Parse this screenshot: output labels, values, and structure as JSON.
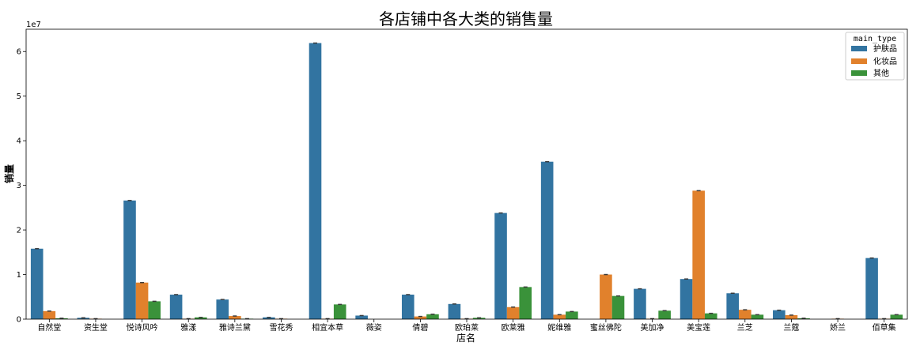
{
  "chart_data": {
    "type": "bar",
    "title": "各店铺中各大类的销售量",
    "xlabel": "店名",
    "ylabel": "销量",
    "y_offset_label": "1e7",
    "ylim": [
      0,
      6.5
    ],
    "y_ticks": [
      0,
      1,
      2,
      3,
      4,
      5,
      6
    ],
    "legend_title": "main_type",
    "legend_position": "top-right",
    "grid": false,
    "categories": [
      "自然堂",
      "资生堂",
      "悦诗风吟",
      "雅漾",
      "雅诗兰黛",
      "雪花秀",
      "相宜本草",
      "薇姿",
      "倩碧",
      "欧珀莱",
      "欧莱雅",
      "妮维雅",
      "蜜丝佛陀",
      "美加净",
      "美宝莲",
      "兰芝",
      "兰蔻",
      "娇兰",
      "佰草集"
    ],
    "series": [
      {
        "name": "护肤品",
        "color": "#3274a1",
        "values": [
          1.58,
          0.03,
          2.66,
          0.55,
          0.44,
          0.04,
          6.19,
          0.08,
          0.55,
          0.34,
          2.38,
          3.53,
          0.0,
          0.68,
          0.9,
          0.58,
          0.2,
          0.0,
          1.37
        ]
      },
      {
        "name": "化妆品",
        "color": "#e1812c",
        "values": [
          0.18,
          0.01,
          0.82,
          0.01,
          0.07,
          0.01,
          0.01,
          0.0,
          0.06,
          0.01,
          0.27,
          0.1,
          1.0,
          0.01,
          2.88,
          0.21,
          0.09,
          0.01,
          0.01
        ]
      },
      {
        "name": "其他",
        "color": "#3a923a",
        "values": [
          0.02,
          0.0,
          0.4,
          0.04,
          0.01,
          0.0,
          0.33,
          0.0,
          0.11,
          0.03,
          0.72,
          0.17,
          0.52,
          0.19,
          0.13,
          0.1,
          0.02,
          0.0,
          0.1
        ]
      }
    ]
  }
}
